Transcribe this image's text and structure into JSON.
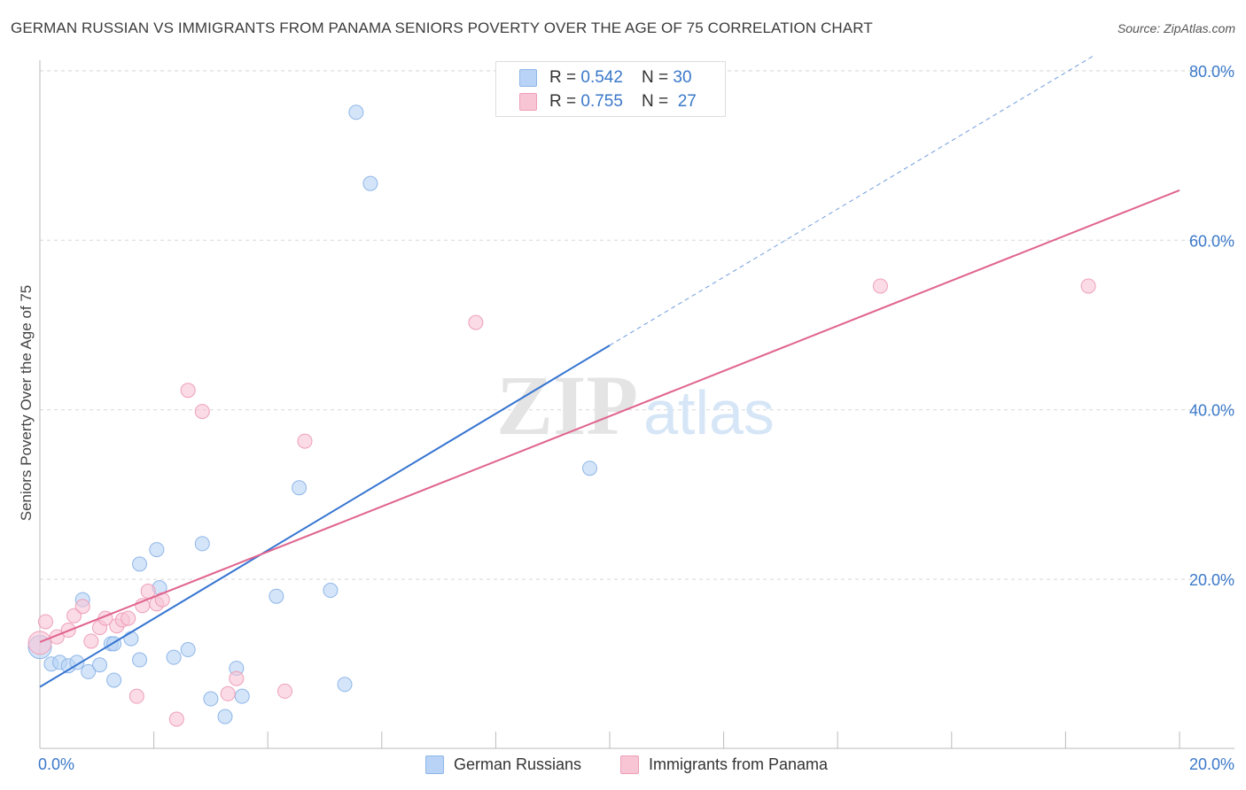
{
  "title": "GERMAN RUSSIAN VS IMMIGRANTS FROM PANAMA SENIORS POVERTY OVER THE AGE OF 75 CORRELATION CHART",
  "source": "Source: ZipAtlas.com",
  "watermark": {
    "zip": "ZIP",
    "atlas": "atlas"
  },
  "legend": {
    "rows": [
      {
        "r_label": "R = ",
        "r_value": "0.542",
        "n_label": "N = ",
        "n_value": "30"
      },
      {
        "r_label": "R = ",
        "r_value": "0.755",
        "n_label": "N = ",
        "n_value": "27"
      }
    ]
  },
  "colors": {
    "blue_fill": "#b8d3f5",
    "blue_stroke": "#8fb6e8",
    "blue_line": "#3574d0",
    "pink_fill": "#f8c5d5",
    "pink_stroke": "#ee9fb8",
    "pink_line": "#e0648e",
    "grid": "#d8d8d8",
    "tick_text": "#3a78c9"
  },
  "chart_data": {
    "type": "scatter",
    "title": "GERMAN RUSSIAN VS IMMIGRANTS FROM PANAMA SENIORS POVERTY OVER THE AGE OF 75 CORRELATION CHART",
    "xlabel": "",
    "ylabel": "Seniors Poverty Over the Age of 75",
    "xlim": [
      0,
      20
    ],
    "ylim": [
      0,
      82
    ],
    "x_tick_labels": [
      "0.0%",
      "20.0%"
    ],
    "y_ticks": [
      20,
      40,
      60,
      80
    ],
    "y_tick_labels": [
      "20.0%",
      "40.0%",
      "60.0%",
      "80.0%"
    ],
    "grid": true,
    "legend_position": "top-center",
    "series": [
      {
        "name": "German Russians",
        "r": 0.542,
        "n": 30,
        "points": [
          [
            0.0,
            12.0
          ],
          [
            0.2,
            10.0
          ],
          [
            0.35,
            10.2
          ],
          [
            0.5,
            9.8
          ],
          [
            0.65,
            10.2
          ],
          [
            0.75,
            17.6
          ],
          [
            0.85,
            9.1
          ],
          [
            1.05,
            9.9
          ],
          [
            1.25,
            12.4
          ],
          [
            1.3,
            8.1
          ],
          [
            1.3,
            12.4
          ],
          [
            1.6,
            13.0
          ],
          [
            1.75,
            10.5
          ],
          [
            1.75,
            21.8
          ],
          [
            2.05,
            23.5
          ],
          [
            2.1,
            19.0
          ],
          [
            2.35,
            10.8
          ],
          [
            2.6,
            11.7
          ],
          [
            2.85,
            24.2
          ],
          [
            3.0,
            5.9
          ],
          [
            3.25,
            3.8
          ],
          [
            3.45,
            9.5
          ],
          [
            3.55,
            6.2
          ],
          [
            4.15,
            18.0
          ],
          [
            4.55,
            30.8
          ],
          [
            5.1,
            18.7
          ],
          [
            5.35,
            7.6
          ],
          [
            5.55,
            75.1
          ],
          [
            5.8,
            66.7
          ],
          [
            9.65,
            33.1
          ]
        ],
        "trend": {
          "x0": 0.0,
          "y0": 7.3,
          "x1": 10.0,
          "y1": 47.6,
          "dashed_to_x": 18.5,
          "dashed_to_y": 81.8
        }
      },
      {
        "name": "Immigrants from Panama",
        "r": 0.755,
        "n": 27,
        "points": [
          [
            0.0,
            12.5
          ],
          [
            0.1,
            15.0
          ],
          [
            0.3,
            13.2
          ],
          [
            0.5,
            14.0
          ],
          [
            0.6,
            15.7
          ],
          [
            0.75,
            16.8
          ],
          [
            0.9,
            12.7
          ],
          [
            1.05,
            14.3
          ],
          [
            1.15,
            15.4
          ],
          [
            1.35,
            14.5
          ],
          [
            1.45,
            15.2
          ],
          [
            1.55,
            15.4
          ],
          [
            1.7,
            6.2
          ],
          [
            1.8,
            16.9
          ],
          [
            1.9,
            18.6
          ],
          [
            2.05,
            17.1
          ],
          [
            2.15,
            17.6
          ],
          [
            2.4,
            3.5
          ],
          [
            2.6,
            42.3
          ],
          [
            2.85,
            39.8
          ],
          [
            3.3,
            6.5
          ],
          [
            3.45,
            8.3
          ],
          [
            4.3,
            6.8
          ],
          [
            4.65,
            36.3
          ],
          [
            7.65,
            50.3
          ],
          [
            14.75,
            54.6
          ],
          [
            18.4,
            54.6
          ]
        ],
        "trend": {
          "x0": 0.0,
          "y0": 12.6,
          "x1": 20.0,
          "y1": 65.9
        }
      }
    ]
  }
}
